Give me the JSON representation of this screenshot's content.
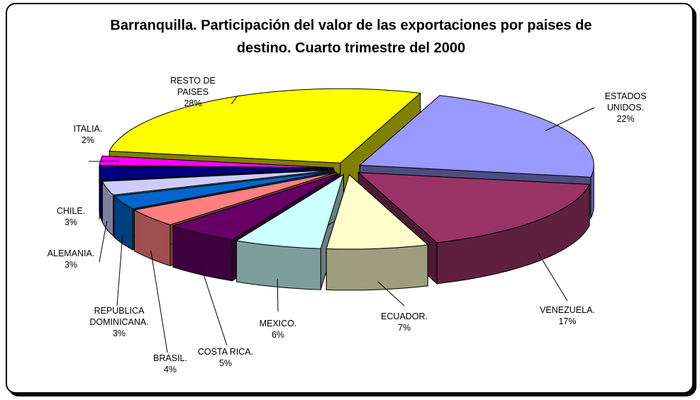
{
  "chart_data": {
    "type": "pie",
    "title": "Barranquilla. Participación del valor de las exportaciones por paises de destino. Cuarto trimestre del 2000",
    "categories": [
      "ESTADOS UNIDOS.",
      "VENEZUELA.",
      "ECUADOR.",
      "MEXICO.",
      "COSTA RICA.",
      "BRASIL.",
      "REPUBLICA DOMINICANA.",
      "ALEMANIA.",
      "CHILE.",
      "ITALIA.",
      "RESTO DE PAISES"
    ],
    "values": [
      22,
      17,
      7,
      6,
      5,
      4,
      3,
      3,
      3,
      2,
      28
    ],
    "value_labels": [
      "22%",
      "17%",
      "7%",
      "6%",
      "5%",
      "4%",
      "3%",
      "3%",
      "3%",
      "2%",
      "28%"
    ],
    "colors": [
      "#9999ff",
      "#993366",
      "#ffffcc",
      "#ccffff",
      "#660066",
      "#ff8080",
      "#0066cc",
      "#ccccff",
      "#000080",
      "#ff00ff",
      "#ffff00"
    ]
  }
}
